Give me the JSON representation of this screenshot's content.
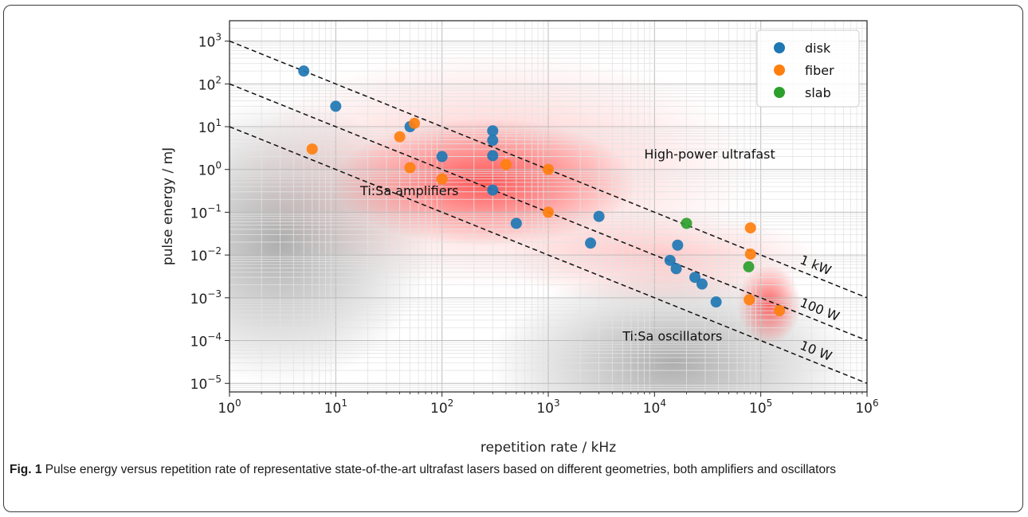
{
  "chart_data": {
    "type": "scatter",
    "xlabel": "repetition rate / kHz",
    "ylabel": "pulse energy / mJ",
    "x_scale": "log",
    "y_scale": "log",
    "xlim": [
      1,
      1000000
    ],
    "ylim": [
      6.3e-06,
      3000
    ],
    "grid": true,
    "legend_position": "top-right",
    "x_ticks": [
      {
        "value": 1,
        "base": "10",
        "exp": "0"
      },
      {
        "value": 10,
        "base": "10",
        "exp": "1"
      },
      {
        "value": 100,
        "base": "10",
        "exp": "2"
      },
      {
        "value": 1000,
        "base": "10",
        "exp": "3"
      },
      {
        "value": 10000,
        "base": "10",
        "exp": "4"
      },
      {
        "value": 100000,
        "base": "10",
        "exp": "5"
      },
      {
        "value": 1000000,
        "base": "10",
        "exp": "6"
      }
    ],
    "y_ticks": [
      {
        "value": 1000,
        "base": "10",
        "exp": "3"
      },
      {
        "value": 100,
        "base": "10",
        "exp": "2"
      },
      {
        "value": 10,
        "base": "10",
        "exp": "1"
      },
      {
        "value": 1,
        "base": "10",
        "exp": "0"
      },
      {
        "value": 0.1,
        "base": "10",
        "exp": "−1"
      },
      {
        "value": 0.01,
        "base": "10",
        "exp": "−2"
      },
      {
        "value": 0.001,
        "base": "10",
        "exp": "−3"
      },
      {
        "value": 0.0001,
        "base": "10",
        "exp": "−4"
      },
      {
        "value": 1e-05,
        "base": "10",
        "exp": "−5"
      }
    ],
    "series": [
      {
        "name": "disk",
        "color": "#1f77b4",
        "points": [
          {
            "x": 5,
            "y": 200
          },
          {
            "x": 10,
            "y": 30
          },
          {
            "x": 50,
            "y": 10
          },
          {
            "x": 100,
            "y": 2
          },
          {
            "x": 300,
            "y": 8
          },
          {
            "x": 300,
            "y": 4.8
          },
          {
            "x": 300,
            "y": 2.1
          },
          {
            "x": 300,
            "y": 0.33
          },
          {
            "x": 500,
            "y": 0.055
          },
          {
            "x": 2500,
            "y": 0.019
          },
          {
            "x": 3000,
            "y": 0.08
          },
          {
            "x": 14000,
            "y": 0.0075
          },
          {
            "x": 16000,
            "y": 0.0048
          },
          {
            "x": 16500,
            "y": 0.017
          },
          {
            "x": 24000,
            "y": 0.003
          },
          {
            "x": 28000,
            "y": 0.0021
          },
          {
            "x": 38000,
            "y": 0.0008
          }
        ]
      },
      {
        "name": "fiber",
        "color": "#ff7f0e",
        "points": [
          {
            "x": 6,
            "y": 3
          },
          {
            "x": 40,
            "y": 5.8
          },
          {
            "x": 50,
            "y": 1.1
          },
          {
            "x": 55,
            "y": 12
          },
          {
            "x": 100,
            "y": 0.6
          },
          {
            "x": 400,
            "y": 1.3
          },
          {
            "x": 1000,
            "y": 1
          },
          {
            "x": 1000,
            "y": 0.1
          },
          {
            "x": 80000,
            "y": 0.043
          },
          {
            "x": 80000,
            "y": 0.0105
          },
          {
            "x": 78000,
            "y": 0.0009
          },
          {
            "x": 150000,
            "y": 0.0005
          }
        ]
      },
      {
        "name": "slab",
        "color": "#2ca02c",
        "points": [
          {
            "x": 20000,
            "y": 0.055
          },
          {
            "x": 77000,
            "y": 0.0053
          }
        ]
      }
    ],
    "reference_lines": [
      {
        "label": "1 kW",
        "power_w": 1000
      },
      {
        "label": "100 W",
        "power_w": 100
      },
      {
        "label": "10 W",
        "power_w": 10
      }
    ],
    "region_labels": [
      {
        "text": "High-power ultrafast",
        "x": 8000,
        "y": 1.8
      },
      {
        "text": "Ti:Sa amplifiers",
        "x": 17,
        "y": 0.25
      },
      {
        "text": "Ti:Sa oscillators",
        "x": 5000,
        "y": 0.0001
      }
    ]
  },
  "caption": {
    "label": "Fig. 1",
    "text": "Pulse energy versus repetition rate of representative state-of-the-art ultrafast lasers based on different geometries, both amplifiers and oscillators"
  }
}
